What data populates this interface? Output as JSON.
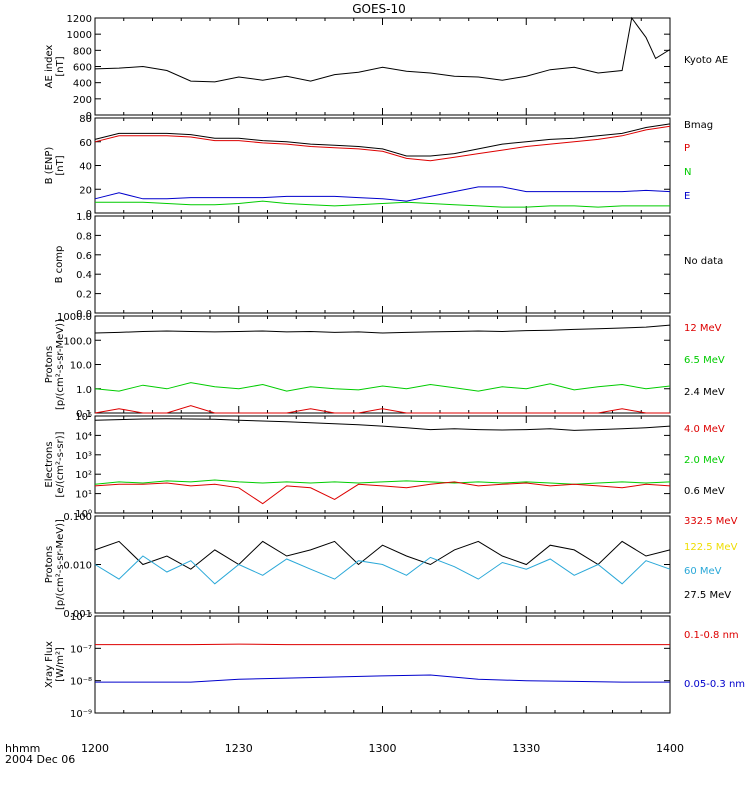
{
  "title": "GOES-10",
  "footer": {
    "time_label": "hhmm",
    "date_label": "2004 Dec 06"
  },
  "x_ticks": [
    "1200",
    "1230",
    "1300",
    "1330",
    "1400"
  ],
  "chart_data": [
    {
      "id": "ae",
      "type": "line",
      "ylabel": [
        "AE index",
        "[nT]"
      ],
      "ylim": [
        0,
        1200
      ],
      "yticks": [
        "0",
        "200",
        "400",
        "600",
        "800",
        "1000",
        "1200"
      ],
      "x": [
        "12:00",
        "12:05",
        "12:10",
        "12:15",
        "12:20",
        "12:25",
        "12:30",
        "12:35",
        "12:40",
        "12:45",
        "12:50",
        "12:55",
        "13:00",
        "13:05",
        "13:10",
        "13:15",
        "13:20",
        "13:25",
        "13:30",
        "13:35",
        "13:40",
        "13:45",
        "13:50",
        "13:52",
        "13:55",
        "13:57",
        "14:00"
      ],
      "series": [
        {
          "name": "Kyoto AE",
          "color": "#000000",
          "values": [
            570,
            580,
            600,
            550,
            420,
            410,
            470,
            430,
            480,
            420,
            500,
            530,
            590,
            540,
            520,
            480,
            470,
            430,
            480,
            560,
            590,
            520,
            550,
            1200,
            960,
            700,
            810
          ]
        }
      ],
      "legend": [
        {
          "text": "Kyoto AE",
          "color": "#000000"
        }
      ]
    },
    {
      "id": "bfield",
      "type": "line",
      "ylabel": [
        "B (ENP)",
        "[nT]"
      ],
      "ylim": [
        0,
        80
      ],
      "yticks": [
        "0",
        "20",
        "40",
        "60",
        "80"
      ],
      "x": [
        "12:00",
        "12:05",
        "12:10",
        "12:15",
        "12:20",
        "12:25",
        "12:30",
        "12:35",
        "12:40",
        "12:45",
        "12:50",
        "12:55",
        "13:00",
        "13:05",
        "13:10",
        "13:15",
        "13:20",
        "13:25",
        "13:30",
        "13:35",
        "13:40",
        "13:45",
        "13:50",
        "13:55",
        "14:00"
      ],
      "series": [
        {
          "name": "Bmag",
          "color": "#000000",
          "values": [
            62,
            67,
            67,
            67,
            66,
            63,
            63,
            61,
            60,
            58,
            57,
            56,
            54,
            48,
            48,
            50,
            54,
            58,
            60,
            62,
            63,
            65,
            67,
            72,
            75
          ]
        },
        {
          "name": "P",
          "color": "#dd0000",
          "values": [
            60,
            65,
            65,
            65,
            64,
            61,
            61,
            59,
            58,
            56,
            55,
            54,
            52,
            46,
            44,
            47,
            50,
            53,
            56,
            58,
            60,
            62,
            65,
            70,
            73
          ]
        },
        {
          "name": "N",
          "color": "#00cc00",
          "values": [
            9,
            9,
            9,
            8,
            7,
            7,
            8,
            10,
            8,
            7,
            6,
            7,
            8,
            9,
            8,
            7,
            6,
            5,
            5,
            6,
            6,
            5,
            6,
            6,
            6
          ]
        },
        {
          "name": "E",
          "color": "#0000cc",
          "values": [
            12,
            17,
            12,
            12,
            13,
            13,
            13,
            13,
            14,
            14,
            14,
            13,
            12,
            10,
            14,
            18,
            22,
            22,
            18,
            18,
            18,
            18,
            18,
            19,
            18
          ]
        }
      ],
      "legend": [
        {
          "text": "Bmag",
          "color": "#000000"
        },
        {
          "text": "P",
          "color": "#dd0000"
        },
        {
          "text": "N",
          "color": "#00cc00"
        },
        {
          "text": "E",
          "color": "#0000cc"
        }
      ]
    },
    {
      "id": "bcomp",
      "type": "line",
      "ylabel": [
        "B comp"
      ],
      "ylim": [
        0,
        1
      ],
      "yticks": [
        "0.0",
        "0.2",
        "0.4",
        "0.6",
        "0.8",
        "1.0"
      ],
      "series": [],
      "legend": [
        {
          "text": "No data",
          "color": "#000000"
        }
      ]
    },
    {
      "id": "protons_low",
      "type": "line",
      "yscale": "log",
      "ylabel": [
        "Protons",
        "[p/(cm²-s-sr-MeV)]"
      ],
      "ylim": [
        0.1,
        1000
      ],
      "yticks": [
        "0.1",
        "1.0",
        "10.0",
        "100.0",
        "1000.0"
      ],
      "x": [
        "12:00",
        "12:05",
        "12:10",
        "12:15",
        "12:20",
        "12:25",
        "12:30",
        "12:35",
        "12:40",
        "12:45",
        "12:50",
        "12:55",
        "13:00",
        "13:05",
        "13:10",
        "13:15",
        "13:20",
        "13:25",
        "13:30",
        "13:35",
        "13:40",
        "13:45",
        "13:50",
        "13:55",
        "14:00"
      ],
      "series": [
        {
          "name": "2.4 MeV",
          "color": "#000000",
          "values": [
            200,
            210,
            230,
            240,
            230,
            220,
            230,
            240,
            220,
            230,
            210,
            220,
            200,
            210,
            220,
            230,
            240,
            230,
            250,
            260,
            280,
            300,
            320,
            350,
            420
          ]
        },
        {
          "name": "6.5 MeV",
          "color": "#00cc00",
          "values": [
            1.0,
            0.8,
            1.4,
            1.0,
            1.8,
            1.2,
            1.0,
            1.5,
            0.8,
            1.2,
            1.0,
            0.9,
            1.3,
            1.0,
            1.5,
            1.1,
            0.8,
            1.2,
            1.0,
            1.6,
            0.9,
            1.2,
            1.5,
            1.0,
            1.3
          ]
        },
        {
          "name": "12 MeV",
          "color": "#dd0000",
          "values": [
            0.1,
            0.15,
            0.1,
            0.1,
            0.2,
            0.1,
            0.1,
            0.1,
            0.1,
            0.15,
            0.1,
            0.1,
            0.15,
            0.1,
            0.1,
            0.1,
            0.1,
            0.1,
            0.1,
            0.1,
            0.1,
            0.1,
            0.15,
            0.1,
            0.1
          ]
        }
      ],
      "legend": [
        {
          "text": "12 MeV",
          "color": "#dd0000"
        },
        {
          "text": "6.5 MeV",
          "color": "#00cc00"
        },
        {
          "text": "2.4 MeV",
          "color": "#000000"
        }
      ]
    },
    {
      "id": "electrons",
      "type": "line",
      "yscale": "log",
      "ylabel": [
        "Electrons",
        "[e/(cm²-s-sr)]"
      ],
      "ylim": [
        1,
        100000
      ],
      "yticks": [
        "10⁰",
        "10¹",
        "10²",
        "10³",
        "10⁴",
        "10⁵"
      ],
      "x": [
        "12:00",
        "12:05",
        "12:10",
        "12:15",
        "12:20",
        "12:25",
        "12:30",
        "12:35",
        "12:40",
        "12:45",
        "12:50",
        "12:55",
        "13:00",
        "13:05",
        "13:10",
        "13:15",
        "13:20",
        "13:25",
        "13:30",
        "13:35",
        "13:40",
        "13:45",
        "13:50",
        "13:55",
        "14:00"
      ],
      "series": [
        {
          "name": "0.6 MeV",
          "color": "#000000",
          "values": [
            60000,
            65000,
            70000,
            72000,
            70000,
            68000,
            60000,
            55000,
            50000,
            45000,
            40000,
            35000,
            30000,
            25000,
            20000,
            22000,
            20000,
            19000,
            20000,
            22000,
            18000,
            20000,
            22000,
            25000,
            30000
          ]
        },
        {
          "name": "2.0 MeV",
          "color": "#00cc00",
          "values": [
            30,
            40,
            35,
            45,
            40,
            50,
            40,
            35,
            40,
            35,
            40,
            35,
            40,
            45,
            40,
            35,
            40,
            35,
            40,
            35,
            30,
            35,
            40,
            35,
            40
          ]
        },
        {
          "name": "4.0 MeV",
          "color": "#dd0000",
          "values": [
            25,
            30,
            30,
            35,
            25,
            30,
            20,
            3,
            25,
            20,
            5,
            30,
            25,
            20,
            30,
            40,
            25,
            30,
            35,
            25,
            30,
            25,
            20,
            30,
            25
          ]
        }
      ],
      "legend": [
        {
          "text": "4.0 MeV",
          "color": "#dd0000"
        },
        {
          "text": "2.0 MeV",
          "color": "#00cc00"
        },
        {
          "text": "0.6 MeV",
          "color": "#000000"
        }
      ]
    },
    {
      "id": "protons_high",
      "type": "line",
      "yscale": "log",
      "ylabel": [
        "Protons",
        "[p/(cm²-s-sr-MeV)]"
      ],
      "ylim": [
        0.001,
        0.1
      ],
      "yticks": [
        "0.001",
        "0.010",
        "0.100"
      ],
      "x": [
        "12:00",
        "12:05",
        "12:10",
        "12:15",
        "12:20",
        "12:25",
        "12:30",
        "12:35",
        "12:40",
        "12:45",
        "12:50",
        "12:55",
        "13:00",
        "13:05",
        "13:10",
        "13:15",
        "13:20",
        "13:25",
        "13:30",
        "13:35",
        "13:40",
        "13:45",
        "13:50",
        "13:55",
        "14:00"
      ],
      "series": [
        {
          "name": "27.5 MeV",
          "color": "#000000",
          "values": [
            0.02,
            0.03,
            0.01,
            0.015,
            0.008,
            0.02,
            0.01,
            0.03,
            0.015,
            0.02,
            0.03,
            0.01,
            0.025,
            0.015,
            0.01,
            0.02,
            0.03,
            0.015,
            0.01,
            0.025,
            0.02,
            0.01,
            0.03,
            0.015,
            0.02
          ]
        },
        {
          "name": "60 MeV",
          "color": "#2aa8d8",
          "values": [
            0.01,
            0.005,
            0.015,
            0.007,
            0.012,
            0.004,
            0.01,
            0.006,
            0.013,
            0.008,
            0.005,
            0.012,
            0.01,
            0.006,
            0.014,
            0.009,
            0.005,
            0.011,
            0.008,
            0.013,
            0.006,
            0.01,
            0.004,
            0.012,
            0.008
          ]
        }
      ],
      "legend": [
        {
          "text": "332.5 MeV",
          "color": "#dd0000"
        },
        {
          "text": "122.5 MeV",
          "color": "#eedd00"
        },
        {
          "text": "60 MeV",
          "color": "#2aa8d8"
        },
        {
          "text": "27.5 MeV",
          "color": "#000000"
        }
      ]
    },
    {
      "id": "xray",
      "type": "line",
      "yscale": "log",
      "ylabel": [
        "Xray  Flux",
        "[W/m²]"
      ],
      "ylim": [
        1e-09,
        1e-06
      ],
      "yticks": [
        "10⁻⁹",
        "10⁻⁸",
        "10⁻⁷",
        "10⁻⁶"
      ],
      "x": [
        "12:00",
        "12:10",
        "12:20",
        "12:30",
        "12:40",
        "12:50",
        "13:00",
        "13:10",
        "13:20",
        "13:30",
        "13:40",
        "13:50",
        "14:00"
      ],
      "series": [
        {
          "name": "0.1-0.8 nm",
          "color": "#dd0000",
          "values": [
            1.3e-07,
            1.3e-07,
            1.3e-07,
            1.35e-07,
            1.3e-07,
            1.3e-07,
            1.3e-07,
            1.3e-07,
            1.3e-07,
            1.3e-07,
            1.3e-07,
            1.3e-07,
            1.3e-07
          ]
        },
        {
          "name": "0.05-0.3 nm",
          "color": "#0000cc",
          "values": [
            9e-09,
            9e-09,
            9e-09,
            1.1e-08,
            1.2e-08,
            1.3e-08,
            1.4e-08,
            1.5e-08,
            1.1e-08,
            1e-08,
            9.5e-09,
            9e-09,
            9e-09
          ]
        }
      ],
      "legend": [
        {
          "text": "0.1-0.8 nm",
          "color": "#dd0000"
        },
        {
          "text": "0.05-0.3 nm",
          "color": "#0000cc"
        }
      ]
    }
  ]
}
